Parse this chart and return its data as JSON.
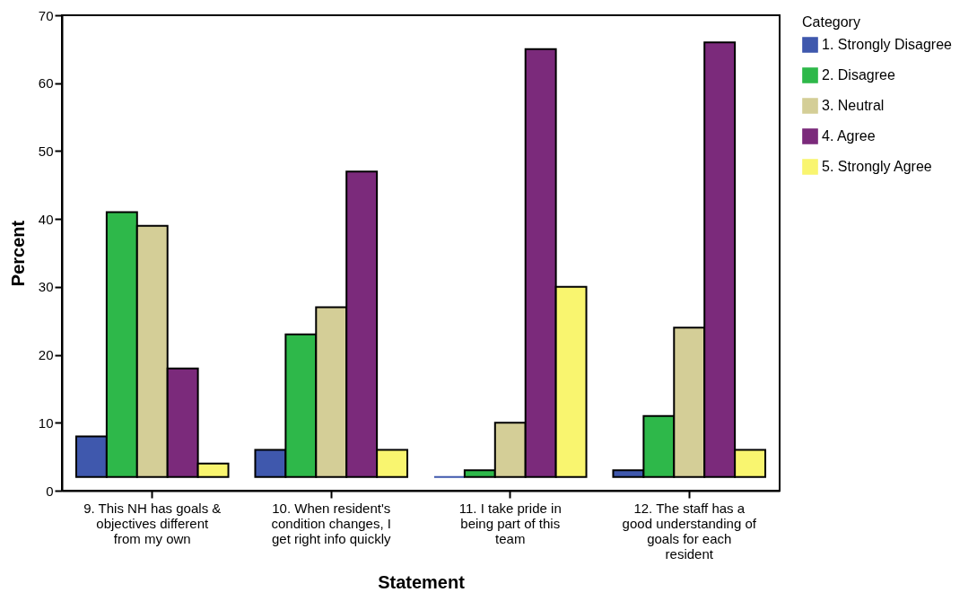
{
  "chart_data": {
    "type": "bar",
    "xlabel": "Statement",
    "ylabel": "Percent",
    "legend_title": "Category",
    "categories": [
      "9. This NH has goals & objectives different from my own",
      "10. When resident's condition changes, I get right info quickly",
      "11. I take pride in being part of this team",
      "12. The staff has a good understanding of goals for each resident"
    ],
    "series": [
      {
        "name": "1. Strongly Disagree",
        "color": "#3f58ad",
        "values": [
          6,
          4,
          0,
          1
        ],
        "base": [
          2,
          2,
          2,
          2
        ]
      },
      {
        "name": "2. Disagree",
        "color": "#2eb84a",
        "values": [
          39,
          21,
          1,
          9
        ],
        "base": [
          2,
          2,
          2,
          2
        ]
      },
      {
        "name": "3. Neutral",
        "color": "#d4ce97",
        "values": [
          37,
          25,
          8,
          22
        ],
        "base": [
          2,
          2,
          2,
          2
        ]
      },
      {
        "name": "4. Agree",
        "color": "#7b2a7b",
        "values": [
          16,
          45,
          63,
          64
        ],
        "base": [
          2,
          2,
          2,
          2
        ]
      },
      {
        "name": "5. Strongly Agree",
        "color": "#f9f56f",
        "values": [
          2,
          4,
          28,
          4
        ],
        "base": [
          2,
          2,
          2,
          2
        ]
      }
    ],
    "ylim": [
      0,
      70
    ],
    "yticks": [
      0,
      10,
      20,
      30,
      40,
      50,
      60,
      70
    ],
    "grid": false,
    "legend": "top right"
  }
}
